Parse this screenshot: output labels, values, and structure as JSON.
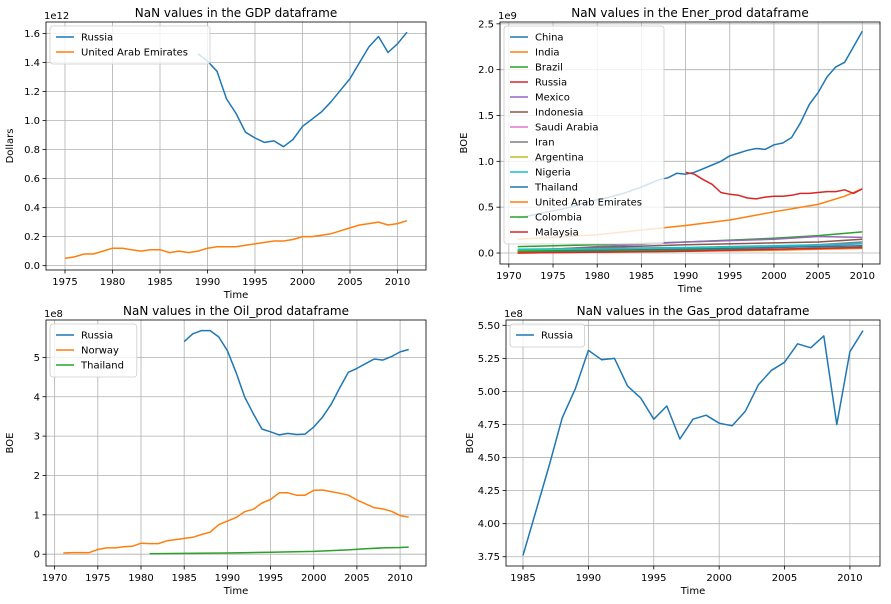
{
  "chart_data": [
    {
      "type": "line",
      "title": "NaN values in the GDP dataframe",
      "xlabel": "Time",
      "ylabel": "Dollars",
      "offset_text": "1e12",
      "xlim": [
        1973,
        2013
      ],
      "ylim": [
        -0.03,
        1.68
      ],
      "xticks": [
        1975,
        1980,
        1985,
        1990,
        1995,
        2000,
        2005,
        2010
      ],
      "yticks": [
        0.0,
        0.2,
        0.4,
        0.6,
        0.8,
        1.0,
        1.2,
        1.4,
        1.6
      ],
      "ytick_labels": [
        "0.0",
        "0.2",
        "0.4",
        "0.6",
        "0.8",
        "1.0",
        "1.2",
        "1.4",
        "1.6"
      ],
      "grid": true,
      "legend_position": "upper-left",
      "series": [
        {
          "name": "Russia",
          "color": "#1f77b4",
          "x": [
            1989,
            1990,
            1991,
            1992,
            1993,
            1994,
            1995,
            1996,
            1997,
            1998,
            1999,
            2000,
            2001,
            2002,
            2003,
            2004,
            2005,
            2006,
            2007,
            2008,
            2009,
            2010,
            2011
          ],
          "y": [
            1.46,
            1.41,
            1.34,
            1.15,
            1.05,
            0.92,
            0.88,
            0.85,
            0.86,
            0.82,
            0.87,
            0.96,
            1.01,
            1.06,
            1.13,
            1.21,
            1.29,
            1.4,
            1.51,
            1.58,
            1.47,
            1.53,
            1.61
          ]
        },
        {
          "name": "United Arab Emirates",
          "color": "#ff7f0e",
          "x": [
            1975,
            1976,
            1977,
            1978,
            1979,
            1980,
            1981,
            1982,
            1983,
            1984,
            1985,
            1986,
            1987,
            1988,
            1989,
            1990,
            1991,
            1992,
            1993,
            1994,
            1995,
            1996,
            1997,
            1998,
            1999,
            2000,
            2001,
            2002,
            2003,
            2004,
            2005,
            2006,
            2007,
            2008,
            2009,
            2010,
            2011
          ],
          "y": [
            0.05,
            0.06,
            0.08,
            0.08,
            0.1,
            0.12,
            0.12,
            0.11,
            0.1,
            0.11,
            0.11,
            0.09,
            0.1,
            0.09,
            0.1,
            0.12,
            0.13,
            0.13,
            0.13,
            0.14,
            0.15,
            0.16,
            0.17,
            0.17,
            0.18,
            0.2,
            0.2,
            0.21,
            0.22,
            0.24,
            0.26,
            0.28,
            0.29,
            0.3,
            0.28,
            0.29,
            0.31
          ]
        }
      ]
    },
    {
      "type": "line",
      "title": "NaN values in the Ener_prod dataframe",
      "xlabel": "Time",
      "ylabel": "BOE",
      "offset_text": "1e9",
      "xlim": [
        1969,
        2012
      ],
      "ylim": [
        -0.12,
        2.52
      ],
      "xticks": [
        1970,
        1975,
        1980,
        1985,
        1990,
        1995,
        2000,
        2005,
        2010
      ],
      "yticks": [
        0.0,
        0.5,
        1.0,
        1.5,
        2.0,
        2.5
      ],
      "ytick_labels": [
        "0.0",
        "0.5",
        "1.0",
        "1.5",
        "2.0",
        "2.5"
      ],
      "grid": true,
      "legend_position": "upper-left",
      "series": [
        {
          "name": "China",
          "color": "#1f77b4",
          "x": [
            1971,
            1973,
            1975,
            1977,
            1979,
            1981,
            1983,
            1985,
            1987,
            1988,
            1989,
            1990,
            1991,
            1992,
            1993,
            1994,
            1995,
            1996,
            1997,
            1998,
            1999,
            2000,
            2001,
            2002,
            2003,
            2004,
            2005,
            2006,
            2007,
            2008,
            2009,
            2010
          ],
          "y": [
            0.38,
            0.42,
            0.46,
            0.5,
            0.56,
            0.6,
            0.65,
            0.72,
            0.8,
            0.82,
            0.87,
            0.86,
            0.88,
            0.92,
            0.96,
            1.0,
            1.06,
            1.09,
            1.12,
            1.14,
            1.13,
            1.18,
            1.2,
            1.26,
            1.42,
            1.62,
            1.75,
            1.92,
            2.03,
            2.08,
            2.25,
            2.42
          ]
        },
        {
          "name": "India",
          "color": "#ff7f0e",
          "x": [
            1971,
            1980,
            1990,
            1995,
            2000,
            2005,
            2008,
            2010
          ],
          "y": [
            0.15,
            0.2,
            0.3,
            0.36,
            0.45,
            0.53,
            0.62,
            0.7
          ]
        },
        {
          "name": "Brazil",
          "color": "#2ca02c",
          "x": [
            1971,
            1980,
            1990,
            2000,
            2005,
            2010
          ],
          "y": [
            0.07,
            0.09,
            0.12,
            0.16,
            0.19,
            0.23
          ]
        },
        {
          "name": "Russia",
          "color": "#d62728",
          "x": [
            1990,
            1991,
            1992,
            1993,
            1994,
            1995,
            1996,
            1997,
            1998,
            1999,
            2000,
            2001,
            2002,
            2003,
            2004,
            2005,
            2006,
            2007,
            2008,
            2009,
            2010
          ],
          "y": [
            0.88,
            0.86,
            0.8,
            0.75,
            0.66,
            0.64,
            0.63,
            0.6,
            0.59,
            0.61,
            0.62,
            0.62,
            0.63,
            0.65,
            0.65,
            0.66,
            0.67,
            0.67,
            0.69,
            0.65,
            0.7
          ]
        },
        {
          "name": "Mexico",
          "color": "#9467bd",
          "x": [
            1971,
            1980,
            1990,
            2000,
            2005,
            2010
          ],
          "y": [
            0.02,
            0.07,
            0.12,
            0.15,
            0.18,
            0.17
          ]
        },
        {
          "name": "Indonesia",
          "color": "#8c564b",
          "x": [
            1971,
            1980,
            1990,
            2000,
            2005,
            2010
          ],
          "y": [
            0.03,
            0.06,
            0.09,
            0.11,
            0.12,
            0.15
          ]
        },
        {
          "name": "Saudi Arabia",
          "color": "#e377c2",
          "x": [
            1971,
            1980,
            1990,
            2000,
            2005,
            2010
          ],
          "y": [
            0.0,
            0.01,
            0.03,
            0.06,
            0.08,
            0.1
          ]
        },
        {
          "name": "Iran",
          "color": "#7f7f7f",
          "x": [
            1971,
            1980,
            1990,
            2000,
            2005,
            2010
          ],
          "y": [
            0.01,
            0.02,
            0.04,
            0.07,
            0.09,
            0.12
          ]
        },
        {
          "name": "Argentina",
          "color": "#bcbd22",
          "x": [
            1971,
            1980,
            1990,
            2000,
            2005,
            2010
          ],
          "y": [
            0.03,
            0.04,
            0.05,
            0.07,
            0.07,
            0.07
          ]
        },
        {
          "name": "Nigeria",
          "color": "#17becf",
          "x": [
            1971,
            1980,
            1990,
            2000,
            2005,
            2010
          ],
          "y": [
            0.04,
            0.05,
            0.06,
            0.08,
            0.09,
            0.1
          ]
        },
        {
          "name": "Thailand",
          "color": "#1f77b4",
          "x": [
            1971,
            1980,
            1990,
            2000,
            2005,
            2010
          ],
          "y": [
            0.02,
            0.03,
            0.04,
            0.06,
            0.07,
            0.08
          ]
        },
        {
          "name": "United Arab Emirates",
          "color": "#ff7f0e",
          "x": [
            1971,
            1980,
            1990,
            2000,
            2005,
            2010
          ],
          "y": [
            0.0,
            0.01,
            0.02,
            0.03,
            0.04,
            0.05
          ]
        },
        {
          "name": "Colombia",
          "color": "#2ca02c",
          "x": [
            1971,
            1980,
            1990,
            2000,
            2005,
            2010
          ],
          "y": [
            0.02,
            0.02,
            0.03,
            0.04,
            0.05,
            0.06
          ]
        },
        {
          "name": "Malaysia",
          "color": "#d62728",
          "x": [
            1971,
            1980,
            1990,
            2000,
            2005,
            2010
          ],
          "y": [
            0.0,
            0.01,
            0.02,
            0.04,
            0.05,
            0.06
          ]
        }
      ]
    },
    {
      "type": "line",
      "title": "NaN values in the Oil_prod dataframe",
      "xlabel": "Time",
      "ylabel": "BOE",
      "offset_text": "1e8",
      "xlim": [
        1969,
        2013
      ],
      "ylim": [
        -0.3,
        5.95
      ],
      "xticks": [
        1970,
        1975,
        1980,
        1985,
        1990,
        1995,
        2000,
        2005,
        2010
      ],
      "yticks": [
        0,
        1,
        2,
        3,
        4,
        5
      ],
      "ytick_labels": [
        "0",
        "1",
        "2",
        "3",
        "4",
        "5"
      ],
      "grid": true,
      "legend_position": "upper-left",
      "series": [
        {
          "name": "Russia",
          "color": "#1f77b4",
          "x": [
            1985,
            1986,
            1987,
            1988,
            1989,
            1990,
            1991,
            1992,
            1993,
            1994,
            1995,
            1996,
            1997,
            1998,
            1999,
            2000,
            2001,
            2002,
            2003,
            2004,
            2005,
            2006,
            2007,
            2008,
            2009,
            2010,
            2011
          ],
          "y": [
            5.4,
            5.6,
            5.68,
            5.68,
            5.52,
            5.17,
            4.62,
            4.0,
            3.57,
            3.18,
            3.11,
            3.03,
            3.07,
            3.04,
            3.05,
            3.23,
            3.48,
            3.8,
            4.22,
            4.62,
            4.72,
            4.84,
            4.96,
            4.93,
            5.02,
            5.14,
            5.2
          ]
        },
        {
          "name": "Norway",
          "color": "#ff7f0e",
          "x": [
            1971,
            1972,
            1973,
            1974,
            1975,
            1976,
            1977,
            1978,
            1979,
            1980,
            1981,
            1982,
            1983,
            1984,
            1985,
            1986,
            1987,
            1988,
            1989,
            1990,
            1991,
            1992,
            1993,
            1994,
            1995,
            1996,
            1997,
            1998,
            1999,
            2000,
            2001,
            2002,
            2003,
            2004,
            2005,
            2006,
            2007,
            2008,
            2009,
            2010,
            2011
          ],
          "y": [
            0.03,
            0.04,
            0.04,
            0.04,
            0.12,
            0.16,
            0.16,
            0.19,
            0.2,
            0.28,
            0.27,
            0.27,
            0.34,
            0.37,
            0.4,
            0.43,
            0.5,
            0.56,
            0.75,
            0.84,
            0.93,
            1.08,
            1.14,
            1.3,
            1.39,
            1.56,
            1.56,
            1.5,
            1.5,
            1.62,
            1.63,
            1.59,
            1.55,
            1.5,
            1.38,
            1.28,
            1.18,
            1.15,
            1.09,
            0.98,
            0.94
          ]
        },
        {
          "name": "Thailand",
          "color": "#2ca02c",
          "x": [
            1981,
            1985,
            1990,
            1995,
            2000,
            2002,
            2004,
            2006,
            2008,
            2010,
            2011
          ],
          "y": [
            0.01,
            0.02,
            0.03,
            0.05,
            0.07,
            0.09,
            0.11,
            0.14,
            0.16,
            0.17,
            0.18
          ]
        }
      ]
    },
    {
      "type": "line",
      "title": "NaN values in the Gas_prod dataframe",
      "xlabel": "Time",
      "ylabel": "BOE",
      "offset_text": "1e8",
      "xlim": [
        1983.7,
        2012.3
      ],
      "ylim": [
        3.68,
        5.54
      ],
      "xticks": [
        1985,
        1990,
        1995,
        2000,
        2005,
        2010
      ],
      "yticks": [
        3.75,
        4.0,
        4.25,
        4.5,
        4.75,
        5.0,
        5.25,
        5.5
      ],
      "ytick_labels": [
        "3.75",
        "4.00",
        "4.25",
        "4.50",
        "4.75",
        "5.00",
        "5.25",
        "5.50"
      ],
      "grid": true,
      "legend_position": "upper-left",
      "series": [
        {
          "name": "Russia",
          "color": "#1f77b4",
          "x": [
            1985,
            1986,
            1987,
            1988,
            1989,
            1990,
            1991,
            1992,
            1993,
            1994,
            1995,
            1996,
            1997,
            1998,
            1999,
            2000,
            2001,
            2002,
            2003,
            2004,
            2005,
            2006,
            2007,
            2008,
            2009,
            2010,
            2011
          ],
          "y": [
            3.76,
            4.1,
            4.44,
            4.8,
            5.02,
            5.31,
            5.24,
            5.25,
            5.04,
            4.95,
            4.79,
            4.89,
            4.64,
            4.79,
            4.82,
            4.76,
            4.74,
            4.85,
            5.05,
            5.16,
            5.22,
            5.36,
            5.33,
            5.42,
            4.75,
            5.3,
            5.46
          ]
        }
      ]
    }
  ]
}
